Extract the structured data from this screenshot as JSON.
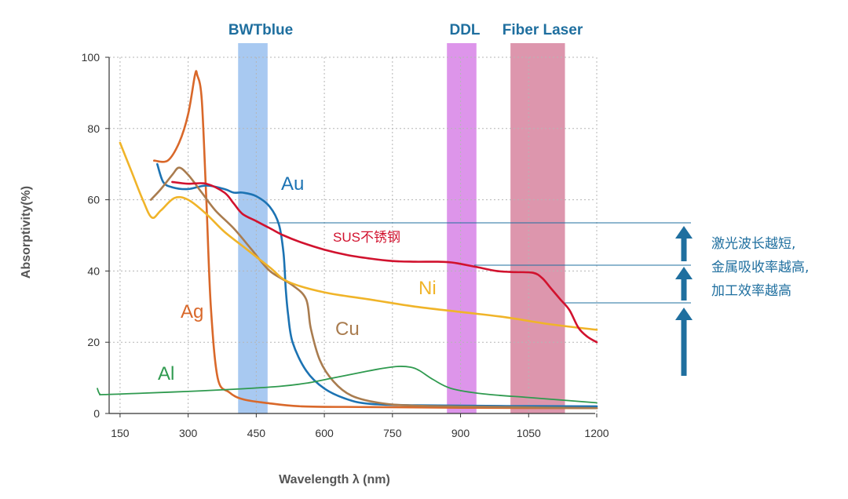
{
  "chart_data": {
    "type": "line",
    "title": "",
    "xlabel": "Wavelength λ (nm)",
    "ylabel": "Absorptivity(%)",
    "xlim": [
      100,
      1200
    ],
    "ylim": [
      0,
      100
    ],
    "x_ticks": [
      150,
      300,
      450,
      600,
      750,
      900,
      1050,
      1200
    ],
    "y_ticks": [
      0,
      20,
      40,
      60,
      80,
      100
    ],
    "grid": true,
    "bands": [
      {
        "name": "BWTblue",
        "x_range": [
          410,
          475
        ],
        "color": "#9ec3f0"
      },
      {
        "name": "DDL",
        "x_range": [
          870,
          935
        ],
        "color": "#d98ae8"
      },
      {
        "name": "Fiber Laser",
        "x_range": [
          1010,
          1130
        ],
        "color": "#d98ba4"
      }
    ],
    "series": [
      {
        "name": "Ag",
        "color": "#d9682a",
        "x": [
          225,
          255,
          280,
          300,
          315,
          320,
          330,
          340,
          350,
          365,
          390,
          420,
          470,
          550,
          700,
          900,
          1200
        ],
        "y": [
          71,
          71,
          76,
          84,
          95,
          95,
          88,
          60,
          30,
          10,
          6,
          4,
          3,
          2,
          1.8,
          1.6,
          1.5
        ]
      },
      {
        "name": "Au",
        "color": "#1c73b3",
        "x": [
          232,
          245,
          265,
          300,
          340,
          380,
          400,
          420,
          450,
          480,
          500,
          510,
          515,
          520,
          530,
          560,
          600,
          650,
          700,
          800,
          1000,
          1200
        ],
        "y": [
          70,
          65,
          63.5,
          63,
          64,
          63,
          62,
          62,
          61,
          58,
          53,
          45,
          35,
          28,
          20,
          12,
          7,
          4,
          2.7,
          2.3,
          2.1,
          2
        ]
      },
      {
        "name": "Cu",
        "color": "#a97c4f",
        "x": [
          218,
          240,
          265,
          280,
          300,
          330,
          360,
          400,
          440,
          480,
          530,
          560,
          570,
          590,
          620,
          660,
          720,
          800,
          1000,
          1200
        ],
        "y": [
          60,
          63,
          67,
          69,
          67,
          62,
          57,
          52,
          46,
          40,
          36,
          32,
          24,
          15,
          9,
          5,
          3,
          2.2,
          1.8,
          1.5
        ]
      },
      {
        "name": "Ni",
        "color": "#f0b429",
        "x": [
          150,
          175,
          200,
          220,
          240,
          270,
          300,
          340,
          380,
          430,
          480,
          520,
          600,
          700,
          800,
          900,
          1000,
          1100,
          1200
        ],
        "y": [
          76,
          68,
          60,
          55,
          57,
          60.5,
          60,
          56,
          51,
          46,
          41,
          37,
          34,
          32,
          30,
          28.5,
          27,
          25,
          23.5
        ]
      },
      {
        "name": "SUS不锈钢",
        "color": "#d1122e",
        "x": [
          265,
          300,
          340,
          380,
          400,
          420,
          450,
          480,
          510,
          550,
          600,
          650,
          700,
          750,
          800,
          850,
          880,
          900,
          940,
          980,
          1020,
          1060,
          1080,
          1100,
          1120,
          1140,
          1160,
          1180,
          1200
        ],
        "y": [
          65,
          64.5,
          64.5,
          62,
          59,
          56,
          54,
          52,
          50,
          48,
          46,
          44.5,
          43.5,
          42.8,
          42.6,
          42.6,
          42.4,
          42,
          41,
          40,
          39.7,
          39.5,
          38,
          35,
          32,
          29,
          24,
          21.5,
          20
        ]
      },
      {
        "name": "Al",
        "color": "#2f9a4f",
        "x": [
          100,
          105,
          115,
          200,
          300,
          400,
          500,
          560,
          620,
          680,
          720,
          760,
          790,
          810,
          840,
          880,
          950,
          1050,
          1150,
          1200
        ],
        "y": [
          7,
          5.5,
          5.3,
          5.7,
          6.2,
          6.8,
          7.6,
          8.5,
          10,
          11.5,
          12.5,
          13.2,
          13,
          12,
          9.5,
          7,
          5.5,
          4.5,
          3.5,
          3
        ]
      }
    ],
    "annotations": [
      {
        "text": "激光波长越短,"
      },
      {
        "text": "金属吸收率越高,"
      },
      {
        "text": "加工效率越高"
      }
    ],
    "arrow_color": "#1f6f9f"
  }
}
